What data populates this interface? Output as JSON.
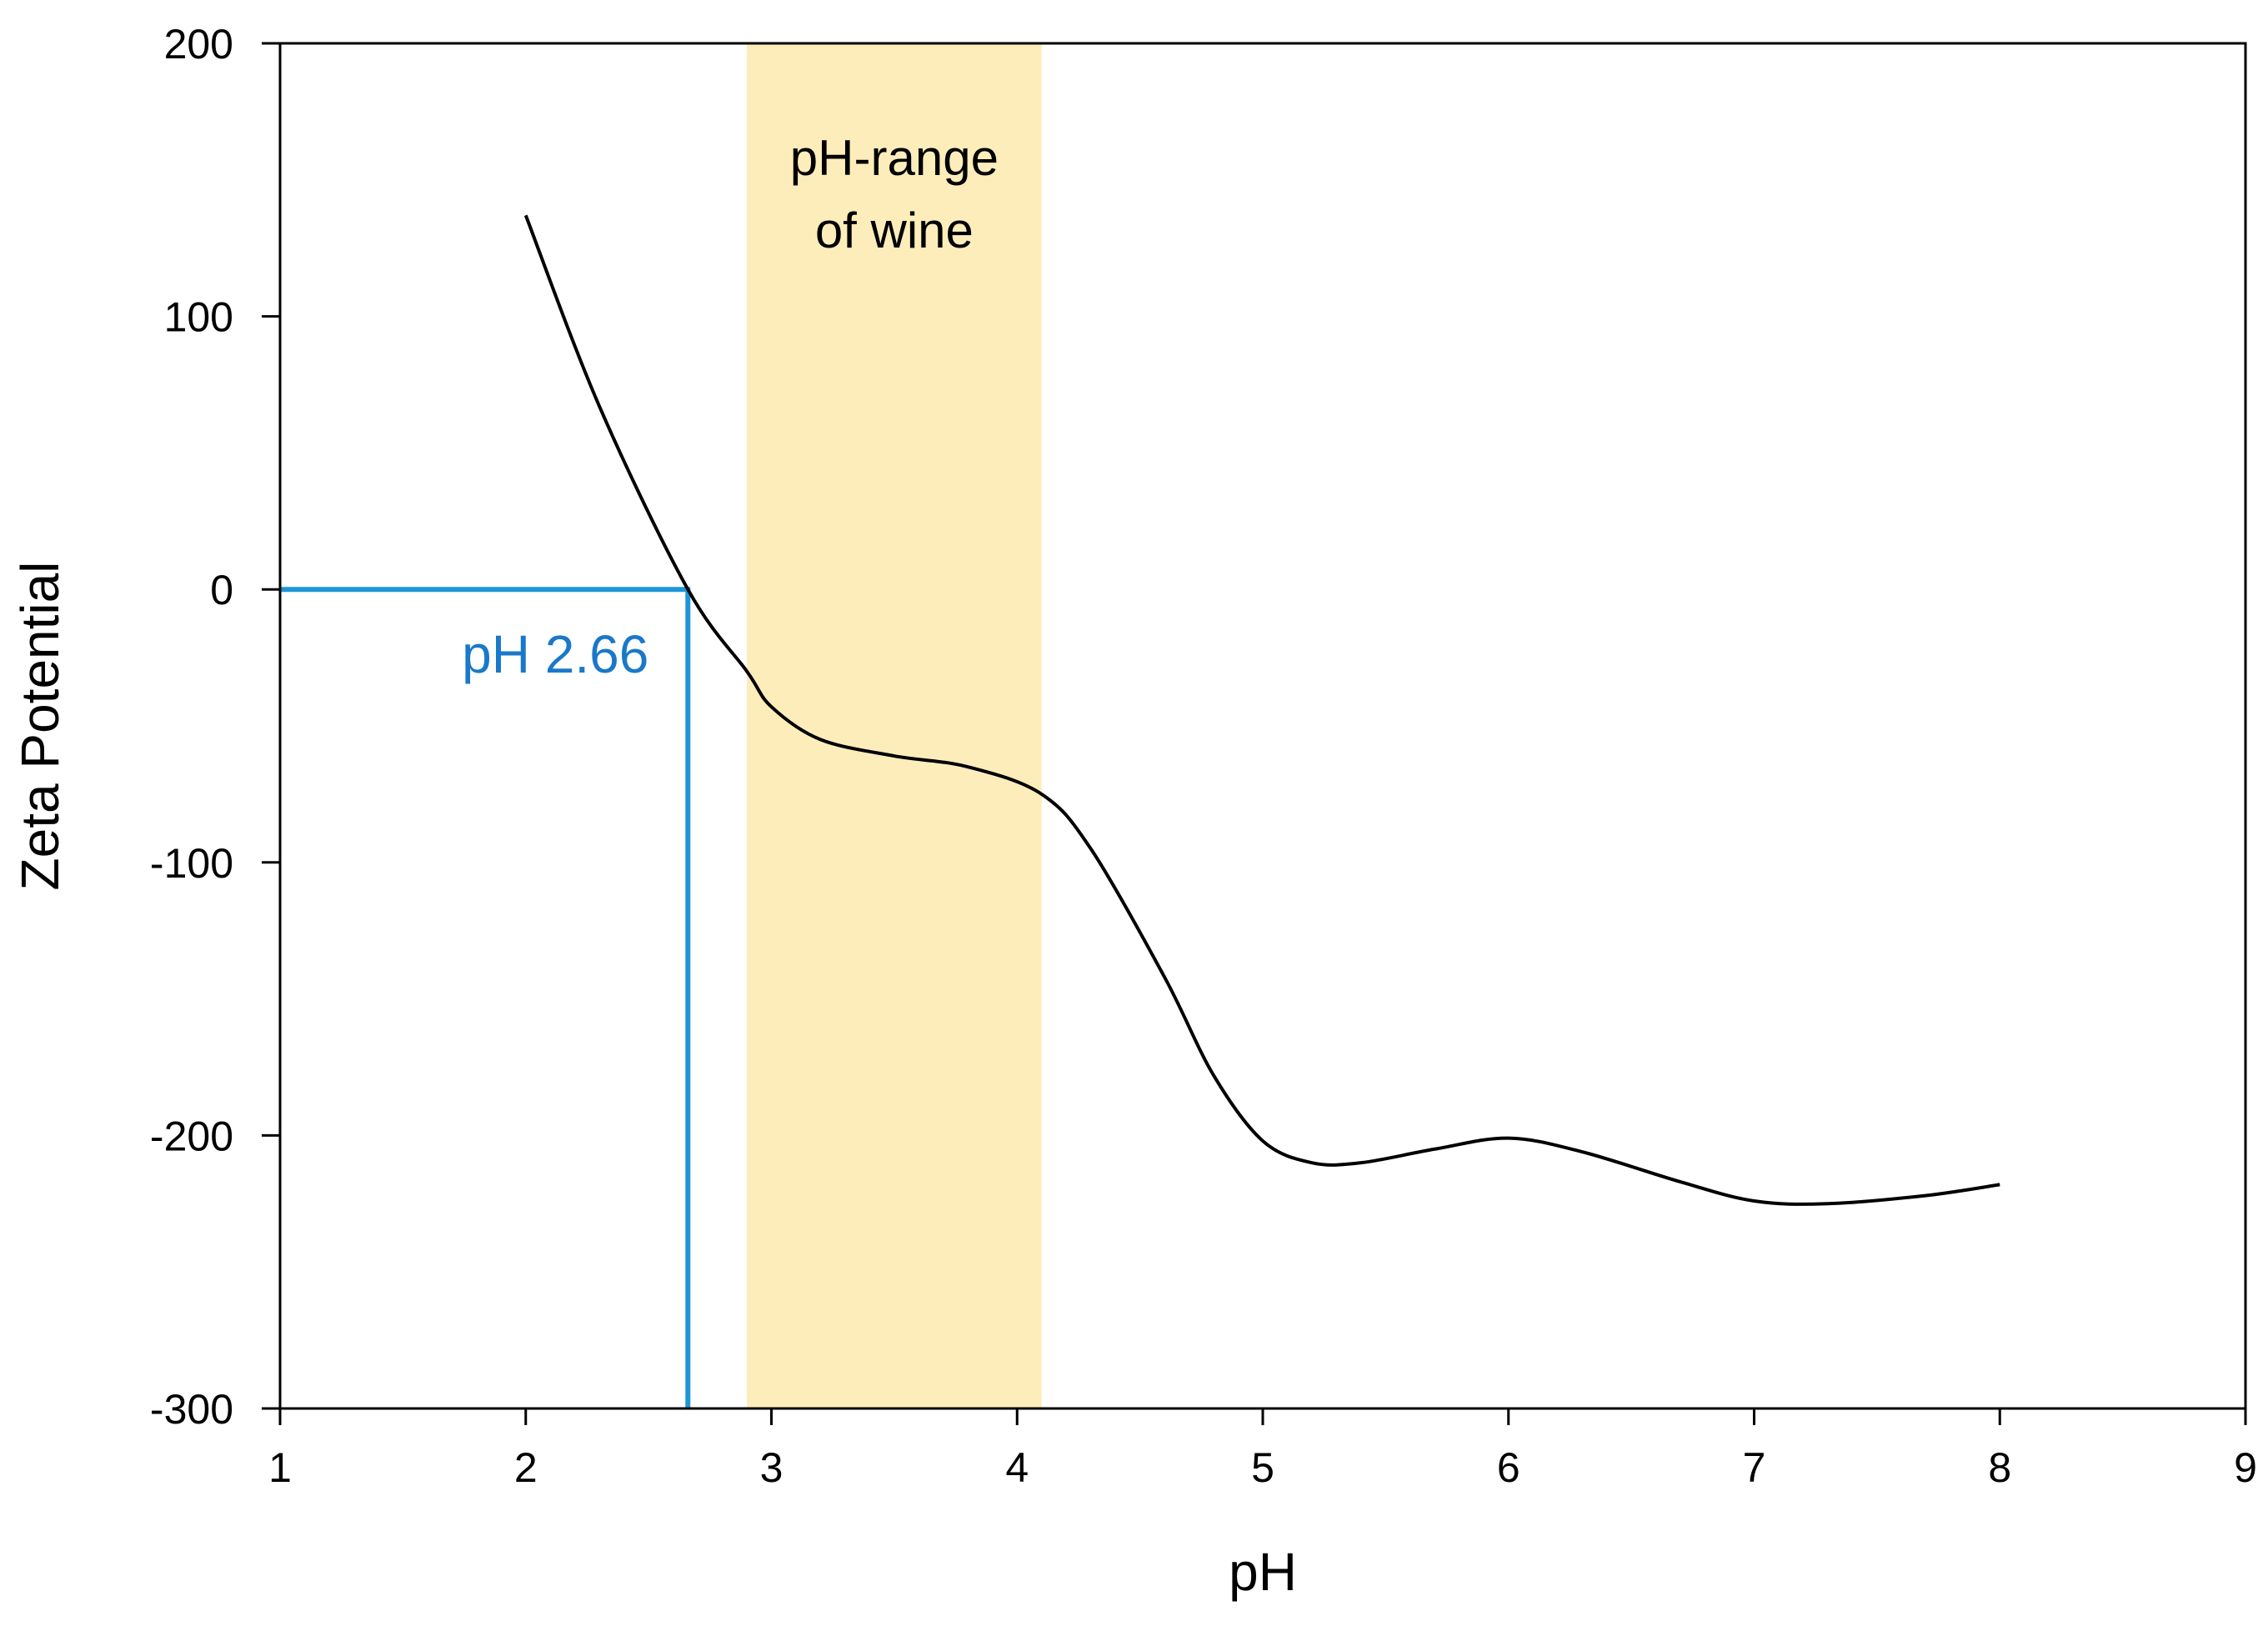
{
  "chart_data": {
    "type": "line",
    "title": "",
    "xlabel": "pH",
    "ylabel": "Zeta Potential",
    "xlim": [
      1,
      9
    ],
    "ylim": [
      -300,
      200
    ],
    "xticks": [
      1,
      2,
      3,
      4,
      5,
      6,
      7,
      8,
      9
    ],
    "yticks": [
      200,
      100,
      0,
      -100,
      -200,
      -300
    ],
    "ytick_labels": [
      "200",
      "100",
      "0",
      "-100",
      "-200",
      "-300"
    ],
    "grid": false,
    "series": [
      {
        "name": "Zeta potential",
        "color": "#000000",
        "x": [
          2.0,
          2.3,
          2.66,
          2.9,
          3.0,
          3.2,
          3.5,
          3.8,
          4.1,
          4.3,
          4.6,
          4.8,
          5.0,
          5.2,
          5.4,
          5.7,
          6.0,
          6.3,
          6.7,
          7.0,
          7.3,
          7.7,
          8.0
        ],
        "y": [
          137,
          67,
          0,
          -30,
          -43,
          -55,
          -61,
          -65,
          -75,
          -95,
          -142,
          -178,
          -202,
          -210,
          -210,
          -205,
          -201,
          -206,
          -217,
          -224,
          -225,
          -222,
          -218
        ]
      }
    ],
    "band": {
      "x_start": 2.9,
      "x_end": 4.1,
      "color": "#FDEDBA",
      "label_lines": [
        "pH-range",
        "of wine"
      ]
    },
    "marker": {
      "x": 2.66,
      "y": 0,
      "color": "#1E96D6",
      "label": "pH 2.66",
      "label_color": "#1A78C8"
    }
  }
}
